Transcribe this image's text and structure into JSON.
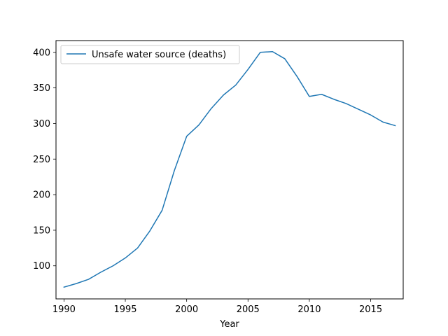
{
  "chart_data": {
    "type": "line",
    "title": "",
    "xlabel": "Year",
    "ylabel": "",
    "xlim": [
      1989.35,
      2017.65
    ],
    "ylim": [
      53.5,
      416.5
    ],
    "xticks": [
      1990,
      1995,
      2000,
      2005,
      2010,
      2015
    ],
    "yticks": [
      100,
      150,
      200,
      250,
      300,
      350,
      400
    ],
    "grid": false,
    "legend_position": "top-left",
    "series": [
      {
        "name": "Unsafe water source (deaths)",
        "color": "#1f77b4",
        "x": [
          1990,
          1991,
          1992,
          1993,
          1994,
          1995,
          1996,
          1997,
          1998,
          1999,
          2000,
          2001,
          2002,
          2003,
          2004,
          2005,
          2006,
          2007,
          2008,
          2009,
          2010,
          2011,
          2012,
          2013,
          2014,
          2015,
          2016,
          2017
        ],
        "values": [
          70,
          75,
          81,
          91,
          100,
          111,
          125,
          149,
          178,
          234,
          282,
          298,
          321,
          340,
          354,
          376,
          400,
          401,
          391,
          366,
          338,
          341,
          334,
          328,
          320,
          312,
          302,
          297
        ]
      }
    ]
  }
}
